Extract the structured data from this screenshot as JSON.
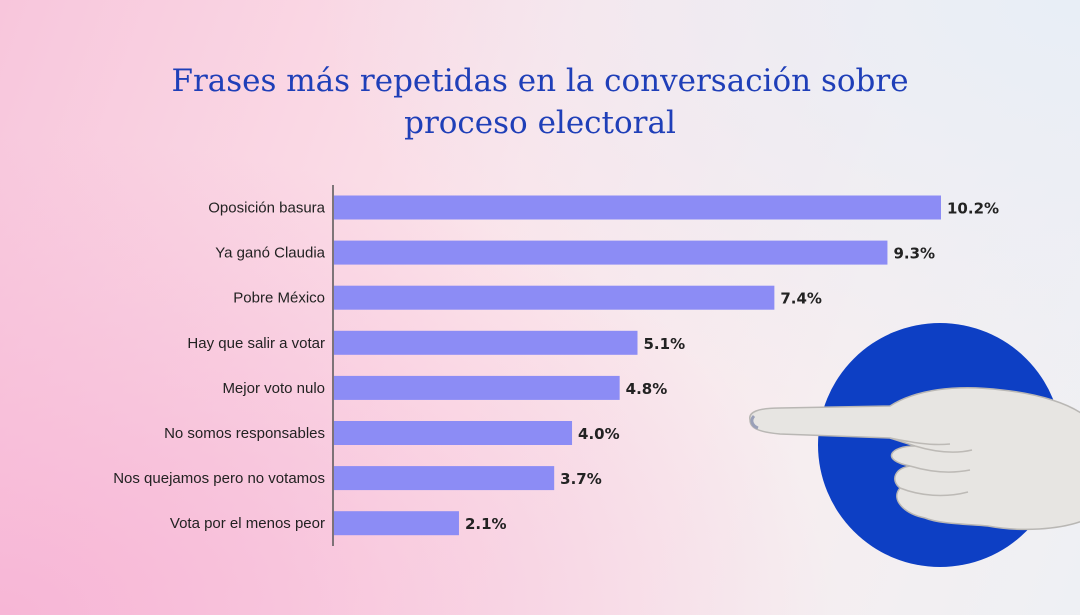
{
  "chart_data": {
    "type": "bar",
    "orientation": "horizontal",
    "title_lines": [
      "Frases más repetidas en la conversación sobre",
      "proceso electoral"
    ],
    "categories": [
      "Oposición basura",
      "Ya ganó Claudia",
      "Pobre México",
      "Hay que salir a votar",
      "Mejor voto nulo",
      "No somos responsables",
      "Nos quejamos pero no votamos",
      "Vota por el menos peor"
    ],
    "values": [
      10.2,
      9.3,
      7.4,
      5.1,
      4.8,
      4.0,
      3.7,
      2.1
    ],
    "data_labels": [
      "10.2%",
      "9.3%",
      "7.4%",
      "5.1%",
      "4.8%",
      "4.0%",
      "3.7%",
      "2.1%"
    ],
    "xlim": [
      0,
      10.2
    ],
    "unit": "%",
    "grid": false,
    "legend": "none",
    "colors": {
      "bar": "#8c8cf5",
      "title": "#1f3fb8",
      "circle": "#0d3fc4",
      "axis": "#555555",
      "label": "#222222"
    }
  },
  "decoration": {
    "hand_icon": "pointing-hand-icon",
    "circle_icon": "blue-circle-icon"
  }
}
